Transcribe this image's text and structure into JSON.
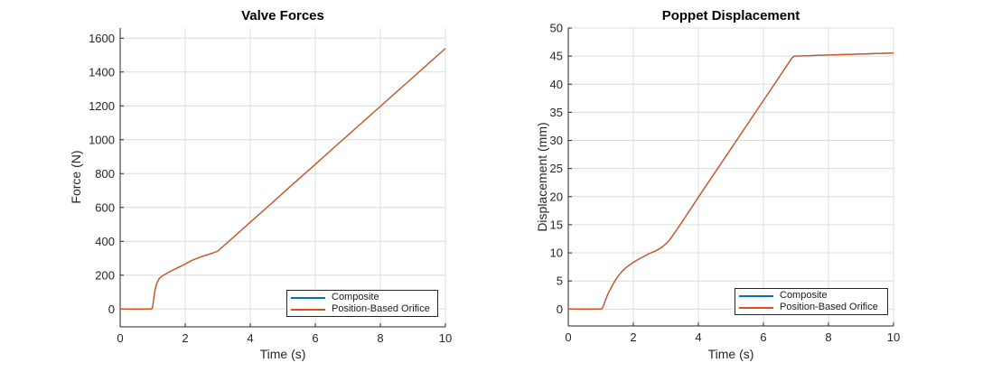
{
  "style": {
    "background": "#ffffff",
    "axis_color": "#262626",
    "grid_color": "#dcdcdc",
    "tick_label_color": "#262626",
    "title_color": "#000000",
    "legend_border_color": "#262626",
    "legend_text_color": "#1a1a1a",
    "series_blue": "#0072BD",
    "series_orange": "#D95319"
  },
  "chart_data": [
    {
      "type": "line",
      "title": "Valve Forces",
      "xlabel": "Time (s)",
      "ylabel": "Force (N)",
      "xlim": [
        0,
        10
      ],
      "ylim": [
        -105,
        1660
      ],
      "xticks": [
        0,
        2,
        4,
        6,
        8,
        10
      ],
      "yticks": [
        0,
        200,
        400,
        600,
        800,
        1000,
        1200,
        1400,
        1600
      ],
      "grid": true,
      "legend_position": "southeast",
      "legend_entries": [
        "Composite",
        "Position-Based Orifice"
      ],
      "series": [
        {
          "name": "Composite",
          "color": "#0072BD",
          "points": [
            [
              0,
              0
            ],
            [
              0.5,
              0
            ],
            [
              0.97,
              0
            ],
            [
              1.0,
              15
            ],
            [
              1.03,
              60
            ],
            [
              1.07,
              110
            ],
            [
              1.12,
              150
            ],
            [
              1.2,
              180
            ],
            [
              1.3,
              197
            ],
            [
              1.45,
              213
            ],
            [
              1.6,
              228
            ],
            [
              1.8,
              247
            ],
            [
              2.0,
              266
            ],
            [
              2.2,
              287
            ],
            [
              2.5,
              310
            ],
            [
              2.7,
              322
            ],
            [
              2.85,
              331
            ],
            [
              3.0,
              342
            ],
            [
              3.15,
              368
            ],
            [
              3.5,
              427
            ],
            [
              4,
              513
            ],
            [
              4.5,
              598
            ],
            [
              5,
              684
            ],
            [
              5.5,
              770
            ],
            [
              6,
              855
            ],
            [
              6.5,
              941
            ],
            [
              7,
              1026
            ],
            [
              7.5,
              1112
            ],
            [
              8,
              1197
            ],
            [
              8.5,
              1283
            ],
            [
              9,
              1368
            ],
            [
              9.5,
              1454
            ],
            [
              10,
              1539
            ]
          ]
        },
        {
          "name": "Position-Based Orifice",
          "color": "#D95319",
          "points": [
            [
              0,
              0
            ],
            [
              0.5,
              0
            ],
            [
              0.97,
              0
            ],
            [
              1.0,
              15
            ],
            [
              1.03,
              60
            ],
            [
              1.07,
              110
            ],
            [
              1.12,
              150
            ],
            [
              1.2,
              180
            ],
            [
              1.3,
              197
            ],
            [
              1.45,
              213
            ],
            [
              1.6,
              228
            ],
            [
              1.8,
              247
            ],
            [
              2.0,
              266
            ],
            [
              2.2,
              287
            ],
            [
              2.5,
              310
            ],
            [
              2.7,
              322
            ],
            [
              2.85,
              331
            ],
            [
              3.0,
              342
            ],
            [
              3.15,
              368
            ],
            [
              3.5,
              427
            ],
            [
              4,
              513
            ],
            [
              4.5,
              598
            ],
            [
              5,
              684
            ],
            [
              5.5,
              770
            ],
            [
              6,
              855
            ],
            [
              6.5,
              941
            ],
            [
              7,
              1026
            ],
            [
              7.5,
              1112
            ],
            [
              8,
              1197
            ],
            [
              8.5,
              1283
            ],
            [
              9,
              1368
            ],
            [
              9.5,
              1454
            ],
            [
              10,
              1539
            ]
          ]
        }
      ]
    },
    {
      "type": "line",
      "title": "Poppet Displacement",
      "xlabel": "Time (s)",
      "ylabel": "Displacement (mm)",
      "xlim": [
        0,
        10
      ],
      "ylim": [
        -3,
        50
      ],
      "xticks": [
        0,
        2,
        4,
        6,
        8,
        10
      ],
      "yticks": [
        0,
        5,
        10,
        15,
        20,
        25,
        30,
        35,
        40,
        45,
        50
      ],
      "grid": true,
      "legend_position": "southeast",
      "legend_entries": [
        "Composite",
        "Position-Based Orifice"
      ],
      "series": [
        {
          "name": "Composite",
          "color": "#0072BD",
          "points": [
            [
              0,
              0
            ],
            [
              0.5,
              0
            ],
            [
              1.02,
              0
            ],
            [
              1.06,
              0.3
            ],
            [
              1.1,
              0.9
            ],
            [
              1.15,
              1.7
            ],
            [
              1.22,
              2.7
            ],
            [
              1.3,
              3.6
            ],
            [
              1.4,
              4.7
            ],
            [
              1.5,
              5.6
            ],
            [
              1.65,
              6.7
            ],
            [
              1.8,
              7.5
            ],
            [
              2.0,
              8.3
            ],
            [
              2.2,
              9.0
            ],
            [
              2.5,
              9.9
            ],
            [
              2.7,
              10.4
            ],
            [
              2.85,
              10.9
            ],
            [
              3.0,
              11.6
            ],
            [
              3.1,
              12.2
            ],
            [
              3.25,
              13.4
            ],
            [
              3.5,
              15.5
            ],
            [
              4,
              19.9
            ],
            [
              4.5,
              24.2
            ],
            [
              5,
              28.5
            ],
            [
              5.5,
              32.8
            ],
            [
              6,
              37.1
            ],
            [
              6.5,
              41.4
            ],
            [
              6.88,
              44.7
            ],
            [
              6.95,
              45.0
            ],
            [
              7.3,
              45.05
            ],
            [
              8,
              45.2
            ],
            [
              9,
              45.38
            ],
            [
              10,
              45.55
            ]
          ]
        },
        {
          "name": "Position-Based Orifice",
          "color": "#D95319",
          "points": [
            [
              0,
              0
            ],
            [
              0.5,
              0
            ],
            [
              1.02,
              0
            ],
            [
              1.06,
              0.3
            ],
            [
              1.1,
              0.9
            ],
            [
              1.15,
              1.7
            ],
            [
              1.22,
              2.7
            ],
            [
              1.3,
              3.6
            ],
            [
              1.4,
              4.7
            ],
            [
              1.5,
              5.6
            ],
            [
              1.65,
              6.7
            ],
            [
              1.8,
              7.5
            ],
            [
              2.0,
              8.3
            ],
            [
              2.2,
              9.0
            ],
            [
              2.5,
              9.9
            ],
            [
              2.7,
              10.4
            ],
            [
              2.85,
              10.9
            ],
            [
              3.0,
              11.6
            ],
            [
              3.1,
              12.2
            ],
            [
              3.25,
              13.4
            ],
            [
              3.5,
              15.5
            ],
            [
              4,
              19.9
            ],
            [
              4.5,
              24.2
            ],
            [
              5,
              28.5
            ],
            [
              5.5,
              32.8
            ],
            [
              6,
              37.1
            ],
            [
              6.5,
              41.4
            ],
            [
              6.88,
              44.7
            ],
            [
              6.95,
              45.0
            ],
            [
              7.3,
              45.05
            ],
            [
              8,
              45.2
            ],
            [
              9,
              45.38
            ],
            [
              10,
              45.55
            ]
          ]
        }
      ]
    }
  ]
}
